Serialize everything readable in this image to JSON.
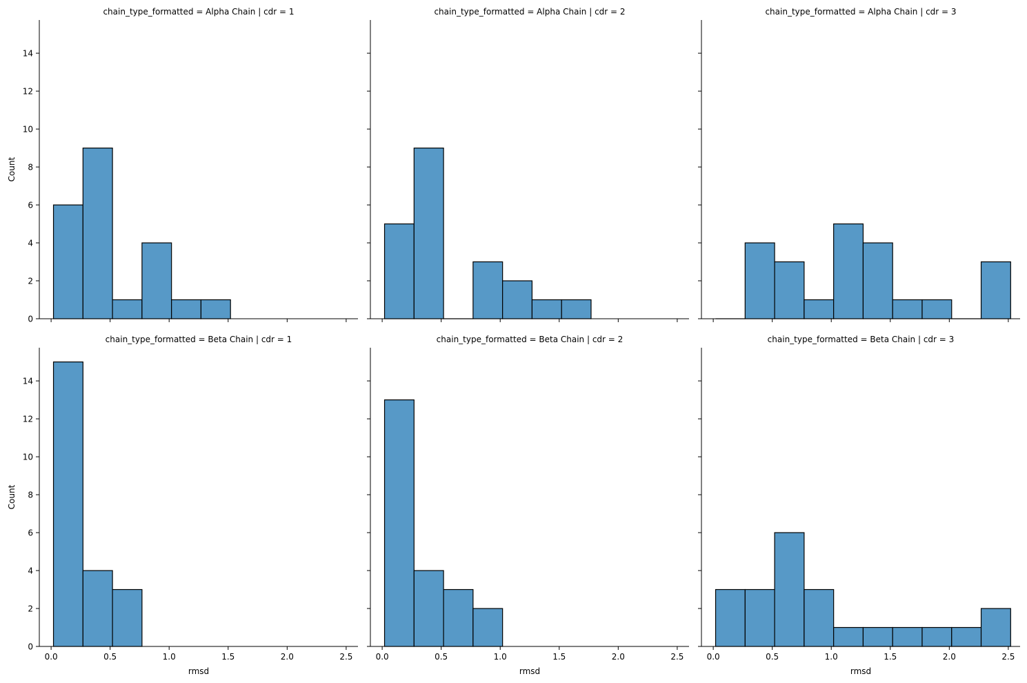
{
  "chart_data": {
    "type": "bar",
    "layout": "facet-grid",
    "grid": false,
    "xlabel": "rmsd",
    "ylabel": "Count",
    "xlim": [
      -0.1,
      2.6
    ],
    "ylim": [
      0,
      15.75
    ],
    "xticks": [
      "0.0",
      "0.5",
      "1.0",
      "1.5",
      "2.0",
      "2.5"
    ],
    "yticks": [
      "0",
      "2",
      "4",
      "6",
      "8",
      "10",
      "12",
      "14"
    ],
    "bar_color": "#5799c7",
    "edge_color": "#000000",
    "panels": [
      {
        "title": "chain_type_formatted = Alpha Chain | cdr = 1",
        "bins": [
          [
            0.02,
            0.27
          ],
          [
            0.27,
            0.52
          ],
          [
            0.52,
            0.77
          ],
          [
            0.77,
            1.02
          ],
          [
            1.02,
            1.27
          ],
          [
            1.27,
            1.52
          ]
        ],
        "values": [
          6,
          9,
          1,
          4,
          1,
          1
        ]
      },
      {
        "title": "chain_type_formatted = Alpha Chain | cdr = 2",
        "bins": [
          [
            0.02,
            0.27
          ],
          [
            0.27,
            0.52
          ],
          [
            0.52,
            0.77
          ],
          [
            0.77,
            1.02
          ],
          [
            1.02,
            1.27
          ],
          [
            1.27,
            1.52
          ],
          [
            1.52,
            1.77
          ]
        ],
        "values": [
          5,
          9,
          0,
          3,
          2,
          1,
          1
        ]
      },
      {
        "title": "chain_type_formatted = Alpha Chain | cdr = 3",
        "bins": [
          [
            0.02,
            0.27
          ],
          [
            0.27,
            0.52
          ],
          [
            0.52,
            0.77
          ],
          [
            0.77,
            1.02
          ],
          [
            1.02,
            1.27
          ],
          [
            1.27,
            1.52
          ],
          [
            1.52,
            1.77
          ],
          [
            1.77,
            2.02
          ],
          [
            2.02,
            2.27
          ],
          [
            2.27,
            2.52
          ]
        ],
        "values": [
          0,
          4,
          3,
          1,
          5,
          4,
          1,
          1,
          0,
          3
        ]
      },
      {
        "title": "chain_type_formatted = Beta Chain | cdr = 1",
        "bins": [
          [
            0.02,
            0.27
          ],
          [
            0.27,
            0.52
          ],
          [
            0.52,
            0.77
          ]
        ],
        "values": [
          15,
          4,
          3
        ]
      },
      {
        "title": "chain_type_formatted = Beta Chain | cdr = 2",
        "bins": [
          [
            0.02,
            0.27
          ],
          [
            0.27,
            0.52
          ],
          [
            0.52,
            0.77
          ],
          [
            0.77,
            1.02
          ]
        ],
        "values": [
          13,
          4,
          3,
          2
        ]
      },
      {
        "title": "chain_type_formatted = Beta Chain | cdr = 3",
        "bins": [
          [
            0.02,
            0.27
          ],
          [
            0.27,
            0.52
          ],
          [
            0.52,
            0.77
          ],
          [
            0.77,
            1.02
          ],
          [
            1.02,
            1.27
          ],
          [
            1.27,
            1.52
          ],
          [
            1.52,
            1.77
          ],
          [
            1.77,
            2.02
          ],
          [
            2.02,
            2.27
          ],
          [
            2.27,
            2.52
          ]
        ],
        "values": [
          3,
          3,
          6,
          3,
          1,
          1,
          1,
          1,
          1,
          2
        ]
      }
    ]
  }
}
